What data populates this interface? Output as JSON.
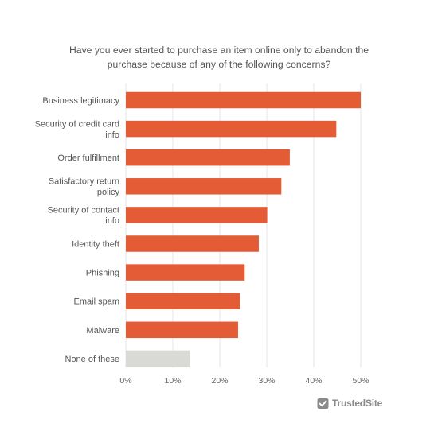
{
  "chart_data": {
    "type": "bar",
    "orientation": "horizontal",
    "title_lines": [
      "Have you ever started to purchase an item online only to abandon the",
      "purchase because of any of the following concerns?"
    ],
    "categories": [
      [
        "Business legitimacy"
      ],
      [
        "Security of credit card",
        "info"
      ],
      [
        "Order fulfillment"
      ],
      [
        "Satisfactory return",
        "policy"
      ],
      [
        "Security of contact",
        "info"
      ],
      [
        "Identity theft"
      ],
      [
        "Phishing"
      ],
      [
        "Email spam"
      ],
      [
        "Malware"
      ],
      [
        "None of these"
      ]
    ],
    "values": [
      50,
      44.8,
      34.9,
      33.1,
      30.1,
      28.3,
      25.3,
      24.3,
      23.9,
      13.6
    ],
    "bar_colors": [
      "#e45c35",
      "#e45c35",
      "#e45c35",
      "#e45c35",
      "#e45c35",
      "#e45c35",
      "#e45c35",
      "#e45c35",
      "#e45c35",
      "#d9d9d6"
    ],
    "xlim": [
      0,
      50
    ],
    "xticks": [
      0,
      10,
      20,
      30,
      40,
      50
    ],
    "xtick_labels": [
      "0%",
      "10%",
      "20%",
      "30%",
      "40%",
      "50%"
    ],
    "grid": "vertical",
    "grid_color": "#e6e6e6"
  },
  "logo": {
    "text": "TrustedSite",
    "icon": "checkmark-shield-icon",
    "color": "#8a8a8a"
  }
}
